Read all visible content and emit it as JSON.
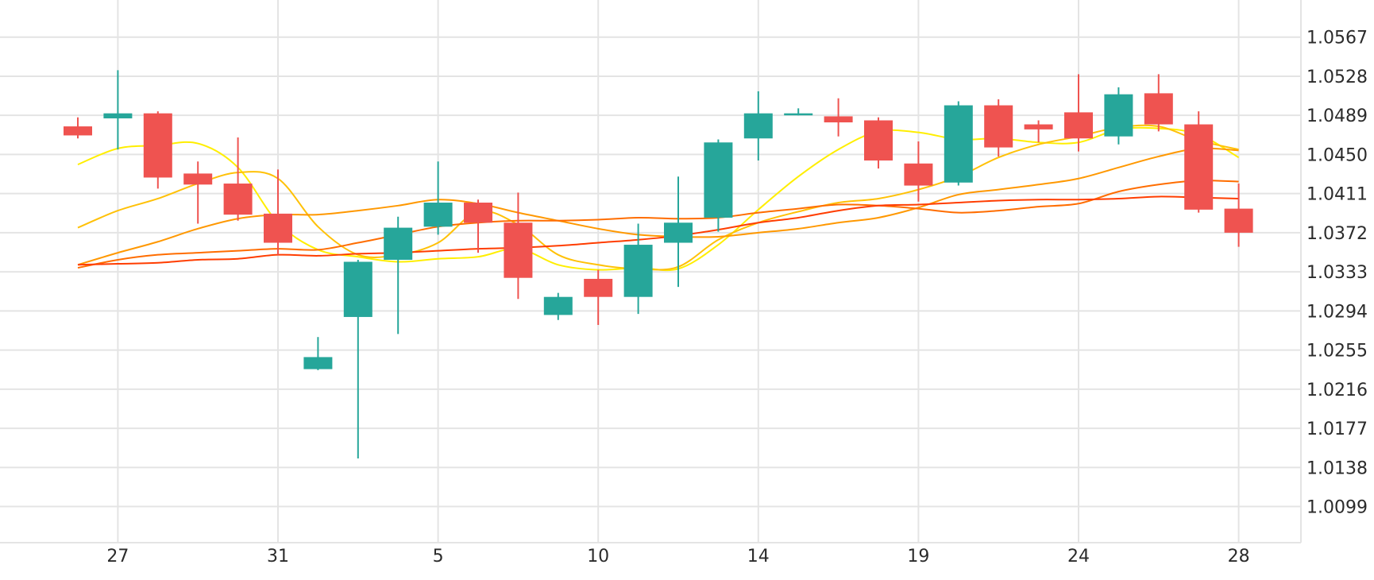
{
  "chart_data": {
    "type": "candlestick",
    "colors": {
      "up": "#26a69a",
      "down": "#ef5350",
      "ma": [
        "#ffee00",
        "#ffc107",
        "#ff9800",
        "#ff6d00",
        "#ff3d00"
      ]
    },
    "x_axis": {
      "tick_labels": [
        "27",
        "31",
        "5",
        "10",
        "14",
        "19",
        "24",
        "28"
      ],
      "tick_indices": [
        1,
        5,
        9,
        13,
        17,
        21,
        25,
        29
      ]
    },
    "y_axis": {
      "position": "right",
      "ylim": [
        1.0063,
        1.0604
      ],
      "ticks": [
        1.0567,
        1.0528,
        1.0489,
        1.045,
        1.0411,
        1.0372,
        1.0333,
        1.0294,
        1.0255,
        1.0216,
        1.0177,
        1.0138,
        1.0099
      ],
      "tick_labels": [
        "1.0567",
        "1.0528",
        "1.0489",
        "1.0450",
        "1.0411",
        "1.0372",
        "1.0333",
        "1.0294",
        "1.0255",
        "1.0216",
        "1.0177",
        "1.0138",
        "1.0099"
      ]
    },
    "grid": true,
    "candles": [
      {
        "o": 1.0478,
        "h": 1.0487,
        "l": 1.0466,
        "c": 1.0469
      },
      {
        "o": 1.0486,
        "h": 1.0534,
        "l": 1.0455,
        "c": 1.0491
      },
      {
        "o": 1.0491,
        "h": 1.0493,
        "l": 1.0416,
        "c": 1.0427
      },
      {
        "o": 1.0431,
        "h": 1.0443,
        "l": 1.0381,
        "c": 1.042
      },
      {
        "o": 1.0421,
        "h": 1.0467,
        "l": 1.0384,
        "c": 1.039
      },
      {
        "o": 1.0391,
        "h": 1.0435,
        "l": 1.035,
        "c": 1.0362
      },
      {
        "o": 1.0236,
        "h": 1.0268,
        "l": 1.0235,
        "c": 1.0248
      },
      {
        "o": 1.0288,
        "h": 1.0345,
        "l": 1.0147,
        "c": 1.0343
      },
      {
        "o": 1.0345,
        "h": 1.0388,
        "l": 1.0271,
        "c": 1.0377
      },
      {
        "o": 1.0378,
        "h": 1.0443,
        "l": 1.037,
        "c": 1.0402
      },
      {
        "o": 1.0402,
        "h": 1.0405,
        "l": 1.0352,
        "c": 1.0382
      },
      {
        "o": 1.0382,
        "h": 1.0412,
        "l": 1.0306,
        "c": 1.0327
      },
      {
        "o": 1.029,
        "h": 1.0312,
        "l": 1.0285,
        "c": 1.0308
      },
      {
        "o": 1.0326,
        "h": 1.0335,
        "l": 1.028,
        "c": 1.0308
      },
      {
        "o": 1.0308,
        "h": 1.0381,
        "l": 1.0291,
        "c": 1.036
      },
      {
        "o": 1.0362,
        "h": 1.0428,
        "l": 1.0318,
        "c": 1.0382
      },
      {
        "o": 1.0387,
        "h": 1.0465,
        "l": 1.0373,
        "c": 1.0462
      },
      {
        "o": 1.0466,
        "h": 1.0513,
        "l": 1.0444,
        "c": 1.0491
      },
      {
        "o": 1.0489,
        "h": 1.0496,
        "l": 1.0489,
        "c": 1.0491
      },
      {
        "o": 1.0488,
        "h": 1.0506,
        "l": 1.0468,
        "c": 1.0482
      },
      {
        "o": 1.0484,
        "h": 1.0487,
        "l": 1.0436,
        "c": 1.0444
      },
      {
        "o": 1.0441,
        "h": 1.0463,
        "l": 1.0403,
        "c": 1.0419
      },
      {
        "o": 1.0422,
        "h": 1.0503,
        "l": 1.0419,
        "c": 1.0499
      },
      {
        "o": 1.0499,
        "h": 1.0505,
        "l": 1.0448,
        "c": 1.0457
      },
      {
        "o": 1.048,
        "h": 1.0484,
        "l": 1.0462,
        "c": 1.0475
      },
      {
        "o": 1.0492,
        "h": 1.053,
        "l": 1.0453,
        "c": 1.0466
      },
      {
        "o": 1.0468,
        "h": 1.0517,
        "l": 1.046,
        "c": 1.051
      },
      {
        "o": 1.0511,
        "h": 1.053,
        "l": 1.0473,
        "c": 1.048
      },
      {
        "o": 1.048,
        "h": 1.0493,
        "l": 1.0392,
        "c": 1.0395
      },
      {
        "o": 1.0396,
        "h": 1.0421,
        "l": 1.0358,
        "c": 1.0372
      }
    ],
    "moving_averages": [
      {
        "values": [
          1.044,
          1.0456,
          1.0459,
          1.0461,
          1.0437,
          1.0382,
          1.0355,
          1.0348,
          1.0343,
          1.0346,
          1.0348,
          1.0356,
          1.034,
          1.0335,
          1.0337,
          1.0336,
          1.036,
          1.0395,
          1.0428,
          1.0455,
          1.0473,
          1.0472,
          1.0465,
          1.0466,
          1.0462,
          1.0462,
          1.0475,
          1.0476,
          1.047,
          1.0447
        ]
      },
      {
        "values": [
          1.0377,
          1.0394,
          1.0406,
          1.0421,
          1.0432,
          1.0426,
          1.0378,
          1.035,
          1.035,
          1.0362,
          1.0393,
          1.038,
          1.035,
          1.034,
          1.0336,
          1.0338,
          1.0365,
          1.0382,
          1.0393,
          1.0402,
          1.0406,
          1.0415,
          1.0428,
          1.0447,
          1.046,
          1.0468,
          1.0477,
          1.0478,
          1.0464,
          1.0455
        ]
      },
      {
        "values": [
          1.034,
          1.0352,
          1.0363,
          1.0376,
          1.0386,
          1.039,
          1.039,
          1.0394,
          1.0399,
          1.0405,
          1.0401,
          1.0392,
          1.0384,
          1.0376,
          1.037,
          1.0368,
          1.0368,
          1.0372,
          1.0376,
          1.0382,
          1.0387,
          1.0397,
          1.041,
          1.0415,
          1.042,
          1.0426,
          1.0437,
          1.0448,
          1.0456,
          1.0454
        ]
      },
      {
        "values": [
          1.0337,
          1.0345,
          1.035,
          1.0352,
          1.0354,
          1.0356,
          1.0355,
          1.0362,
          1.037,
          1.0378,
          1.0382,
          1.0384,
          1.0384,
          1.0385,
          1.0387,
          1.0386,
          1.0387,
          1.0392,
          1.0396,
          1.04,
          1.0399,
          1.0396,
          1.0392,
          1.0394,
          1.0398,
          1.0401,
          1.0413,
          1.042,
          1.0424,
          1.0423
        ]
      },
      {
        "values": [
          1.034,
          1.0341,
          1.0342,
          1.0345,
          1.0346,
          1.035,
          1.0349,
          1.0351,
          1.0352,
          1.0354,
          1.0356,
          1.0357,
          1.0359,
          1.0362,
          1.0365,
          1.0369,
          1.0375,
          1.0382,
          1.0387,
          1.0394,
          1.0399,
          1.04,
          1.0402,
          1.0404,
          1.0405,
          1.0405,
          1.0406,
          1.0408,
          1.0407,
          1.0406
        ]
      }
    ]
  }
}
